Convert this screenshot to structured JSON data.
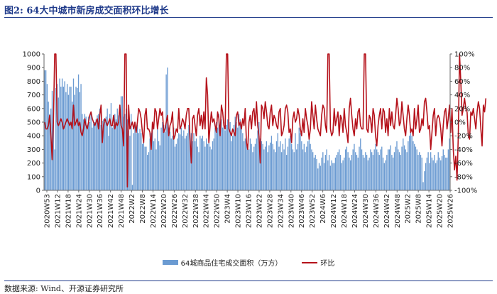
{
  "header": {
    "title": "图2: 64大中城市新房成交面积环比增长"
  },
  "footer": {
    "source": "数据来源: Wind、开源证券研究所"
  },
  "colors": {
    "bars": "#6b9bd2",
    "line": "#b5121b",
    "title": "#1f3a8a"
  },
  "chart_data": {
    "type": "bar+line",
    "title": "图2: 64大中城市新房成交面积环比增长",
    "legend_position": "bottom",
    "grid": false,
    "y_left": {
      "min": 0,
      "max": 1000,
      "ticks": [
        "0",
        "100",
        "200",
        "300",
        "400",
        "500",
        "600",
        "700",
        "800",
        "900",
        "1000"
      ]
    },
    "y_right": {
      "min": -100,
      "max": 100,
      "ticks": [
        "-100%",
        "-80%",
        "-60%",
        "-40%",
        "-20%",
        "0%",
        "20%",
        "40%",
        "60%",
        "80%",
        "100%"
      ]
    },
    "x_tick_labels": [
      "2020W53",
      "2021W12",
      "2021W18",
      "2021W24",
      "2021W30",
      "2021W36",
      "2021W42",
      "2021W48",
      "2022W2",
      "2022W8",
      "2022W14",
      "2022W20",
      "2022W26",
      "2022W32",
      "2022W38",
      "2022W44",
      "2022W50",
      "2023W4",
      "2023W10",
      "2023W16",
      "2023W22",
      "2023W28",
      "2023W34",
      "2023W40",
      "2023W46",
      "2023W52",
      "2024W6",
      "2024W12",
      "2024W18",
      "2024W24",
      "2024W30",
      "2024W36",
      "2024W42",
      "2024W48",
      "2025W2",
      "2025W8",
      "2025W14",
      "2025W20",
      "2025W26"
    ],
    "series": [
      {
        "name": "64城商品住宅成交面积（万方）",
        "type": "bar",
        "axis": "left",
        "values": [
          880,
          880,
          780,
          650,
          560,
          600,
          730,
          480,
          300,
          750,
          780,
          680,
          820,
          760,
          820,
          760,
          800,
          720,
          780,
          700,
          760,
          760,
          650,
          820,
          700,
          760,
          750,
          850,
          720,
          780,
          560,
          520,
          560,
          540,
          480,
          540,
          500,
          560,
          460,
          490,
          500,
          520,
          550,
          560,
          600,
          480,
          510,
          520,
          500,
          540,
          600,
          400,
          560,
          640,
          460,
          480,
          560,
          520,
          600,
          550,
          620,
          690,
          690,
          540,
          560,
          600,
          520,
          440,
          400,
          560,
          40,
          420,
          500,
          420,
          480,
          420,
          450,
          420,
          340,
          360,
          320,
          320,
          260,
          280,
          380,
          420,
          460,
          360,
          380,
          300,
          480,
          360,
          330,
          460,
          500,
          480,
          430,
          850,
          900,
          460,
          430,
          380,
          400,
          460,
          320,
          340,
          380,
          420,
          410,
          460,
          400,
          440,
          380,
          400,
          420,
          480,
          380,
          420,
          360,
          420,
          360,
          380,
          320,
          280,
          400,
          380,
          400,
          360,
          320,
          380,
          340,
          380,
          320,
          300,
          360,
          380,
          460,
          500,
          460,
          560,
          480,
          520,
          460,
          500,
          440,
          480,
          520,
          460,
          500,
          360,
          400,
          480,
          540,
          500,
          460,
          560,
          520,
          480,
          420,
          360,
          380,
          360,
          320,
          300,
          380,
          340,
          280,
          320,
          340,
          380,
          440,
          500,
          380,
          360,
          340,
          300,
          320,
          360,
          280,
          330,
          350,
          400,
          340,
          300,
          280,
          360,
          420,
          320,
          360,
          280,
          340,
          300,
          380,
          260,
          320,
          380,
          400,
          340,
          300,
          280,
          420,
          300,
          340,
          460,
          420,
          360,
          300,
          340,
          280,
          320,
          360,
          400,
          340,
          300,
          280,
          240,
          260,
          230,
          160,
          200,
          180,
          240,
          280,
          200,
          260,
          300,
          220,
          260,
          180,
          220,
          200,
          200,
          240,
          260,
          280,
          300,
          260,
          200,
          220,
          240,
          300,
          320,
          280,
          240,
          220,
          260,
          300,
          340,
          280,
          260,
          240,
          320,
          380,
          300,
          260,
          240,
          280,
          260,
          220,
          240,
          300,
          280,
          260,
          300,
          340,
          300,
          280,
          260,
          300,
          320,
          240,
          200,
          220,
          260,
          300,
          300,
          330,
          260,
          240,
          280,
          320,
          360,
          300,
          280,
          260,
          320,
          380,
          330,
          300,
          280,
          360,
          400,
          460,
          400,
          360,
          340,
          320,
          300,
          260,
          280,
          260,
          240,
          60,
          140,
          200,
          240,
          280,
          200,
          280,
          240,
          220,
          260,
          200,
          220,
          280,
          240,
          220,
          250,
          300,
          260,
          240,
          240,
          300,
          380
        ]
      },
      {
        "name": "环比",
        "type": "line",
        "axis": "right",
        "values": [
          0,
          -10,
          -10,
          -5,
          10,
          -20,
          -55,
          0,
          100,
          100,
          0,
          -5,
          0,
          5,
          0,
          -10,
          -5,
          0,
          5,
          0,
          -5,
          0,
          -10,
          25,
          -5,
          0,
          5,
          -5,
          0,
          -15,
          -20,
          -10,
          5,
          -5,
          -10,
          0,
          10,
          15,
          5,
          0,
          -5,
          0,
          5,
          -10,
          10,
          25,
          -30,
          -5,
          5,
          0,
          -5,
          0,
          5,
          -5,
          -5,
          10,
          -10,
          0,
          -5,
          0,
          25,
          -5,
          -10,
          -35,
          100,
          100,
          -95,
          25,
          -10,
          -5,
          0,
          -10,
          0,
          -15,
          0,
          20,
          15,
          5,
          -15,
          -30,
          10,
          20,
          -10,
          -10,
          -15,
          -40,
          0,
          -10,
          20,
          15,
          -10,
          5,
          20,
          10,
          15,
          -15,
          -10,
          0,
          10,
          -20,
          -5,
          0,
          15,
          -25,
          -20,
          -10,
          -15,
          20,
          -10,
          -5,
          5,
          0,
          -10,
          10,
          20,
          20,
          -25,
          -60,
          5,
          10,
          -5,
          -20,
          10,
          20,
          -5,
          10,
          -10,
          15,
          -10,
          65,
          40,
          -30,
          -5,
          15,
          0,
          5,
          -5,
          -15,
          15,
          5,
          -20,
          25,
          15,
          -5,
          -10,
          100,
          100,
          -10,
          -15,
          -20,
          -10,
          -15,
          -20,
          10,
          15,
          -5,
          0,
          -10,
          5,
          -5,
          20,
          -30,
          -40,
          0,
          10,
          -10,
          15,
          20,
          -5,
          30,
          -5,
          -20,
          -60,
          25,
          20,
          5,
          30,
          15,
          -5,
          -10,
          15,
          25,
          -5,
          10,
          5,
          -5,
          -10,
          15,
          20,
          -20,
          -15,
          -5,
          20,
          25,
          15,
          -15,
          -10,
          -30,
          5,
          15,
          0,
          5,
          20,
          10,
          -10,
          -20,
          5,
          -15,
          20,
          5,
          -5,
          -25,
          -10,
          30,
          10,
          -10,
          25,
          5,
          -10,
          -15,
          -20,
          10,
          25,
          20,
          -5,
          -15,
          100,
          100,
          -10,
          -20,
          -15,
          20,
          -5,
          5,
          15,
          -20,
          10,
          5,
          -15,
          20,
          -5,
          -15,
          -30,
          20,
          35,
          10,
          -10,
          -20,
          5,
          -10,
          15,
          20,
          -5,
          -10,
          -10,
          100,
          100,
          -10,
          -15,
          10,
          5,
          -15,
          20,
          10,
          -20,
          -35,
          -5,
          10,
          20,
          -10,
          20,
          15,
          -15,
          5,
          -20,
          20,
          -5,
          15,
          -5,
          -10,
          10,
          35,
          20,
          -5,
          0,
          30,
          10,
          -10,
          -20,
          5,
          25,
          10,
          -15,
          -10,
          -20,
          20,
          -10,
          5,
          25,
          -15,
          -10,
          5,
          -5,
          30,
          35,
          15,
          -10,
          -5,
          -40,
          -15,
          10,
          20,
          -20,
          5,
          10,
          5,
          -10,
          -35,
          -5,
          15,
          20,
          -10,
          5,
          25,
          -15,
          20,
          -40,
          -70,
          -50,
          -85,
          -20,
          100,
          60,
          10,
          20,
          35,
          20,
          15,
          -20,
          -25,
          15,
          10,
          20,
          5,
          -10,
          15,
          30,
          20,
          -10,
          -35,
          25,
          15,
          35
        ]
      }
    ]
  }
}
